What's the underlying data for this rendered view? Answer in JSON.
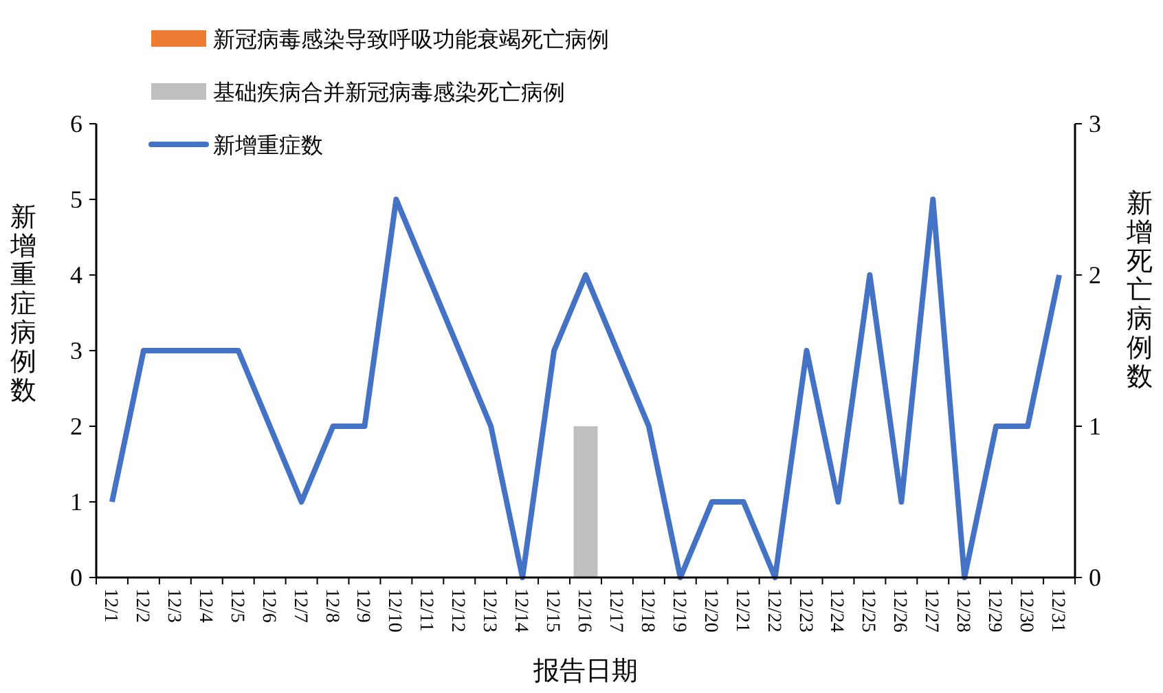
{
  "chart_data": {
    "type": "line",
    "xlabel": "报告日期",
    "ylabel": "新增重症病例数",
    "y2label": "新增死亡病例数",
    "categories": [
      "12/1",
      "12/2",
      "12/3",
      "12/4",
      "12/5",
      "12/6",
      "12/7",
      "12/8",
      "12/9",
      "12/10",
      "12/11",
      "12/12",
      "12/13",
      "12/14",
      "12/15",
      "12/16",
      "12/17",
      "12/18",
      "12/19",
      "12/20",
      "12/21",
      "12/22",
      "12/23",
      "12/24",
      "12/25",
      "12/26",
      "12/27",
      "12/28",
      "12/29",
      "12/30",
      "12/31"
    ],
    "series": [
      {
        "name": "新冠病毒感染导致呼吸功能衰竭死亡病例",
        "type": "bar",
        "axis": "y2",
        "color": "#ed7d31",
        "values": [
          0,
          0,
          0,
          0,
          0,
          0,
          0,
          0,
          0,
          0,
          0,
          0,
          0,
          0,
          0,
          0,
          0,
          0,
          0,
          0,
          0,
          0,
          0,
          0,
          0,
          0,
          0,
          0,
          0,
          0,
          0
        ]
      },
      {
        "name": "基础疾病合并新冠病毒感染死亡病例",
        "type": "bar",
        "axis": "y2",
        "color": "#bfbfbf",
        "values": [
          0,
          0,
          0,
          0,
          0,
          0,
          0,
          0,
          0,
          0,
          0,
          0,
          0,
          0,
          0,
          1,
          0,
          0,
          0,
          0,
          0,
          0,
          0,
          0,
          0,
          0,
          0,
          0,
          0,
          0,
          0
        ]
      },
      {
        "name": "新增重症数",
        "color": "#4472c4",
        "values": [
          1,
          3,
          3,
          3,
          3,
          2,
          1,
          2,
          2,
          5,
          4,
          3,
          2,
          0,
          3,
          4,
          3,
          2,
          0,
          1,
          1,
          0,
          3,
          1,
          4,
          1,
          5,
          0,
          2,
          2,
          4
        ]
      }
    ],
    "ylim": [
      0,
      6
    ],
    "yticks": [
      0,
      1,
      2,
      3,
      4,
      5,
      6
    ],
    "y2lim": [
      0,
      3
    ],
    "y2ticks": [
      0,
      1,
      2,
      3
    ],
    "legend": "top left",
    "grid": false,
    "marker": "none",
    "line_style": "solid"
  }
}
